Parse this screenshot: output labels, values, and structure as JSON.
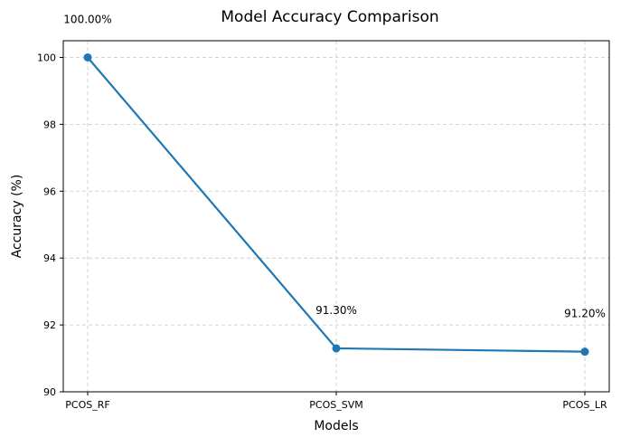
{
  "chart_data": {
    "type": "line",
    "title": "Model Accuracy Comparison",
    "xlabel": "Models",
    "ylabel": "Accuracy (%)",
    "categories": [
      "PCOS_RF",
      "PCOS_SVM",
      "PCOS_LR"
    ],
    "series": [
      {
        "values": [
          100.0,
          91.3,
          91.2
        ],
        "color": "#1f77b4",
        "marker": "circle"
      }
    ],
    "data_labels": [
      "100.00%",
      "91.30%",
      "91.20%"
    ],
    "ylim": [
      90,
      100.5
    ],
    "yticks": [
      90,
      92,
      94,
      96,
      98,
      100
    ],
    "ytick_labels": [
      "90",
      "92",
      "94",
      "96",
      "98",
      "100"
    ],
    "grid": true,
    "legend": false
  }
}
